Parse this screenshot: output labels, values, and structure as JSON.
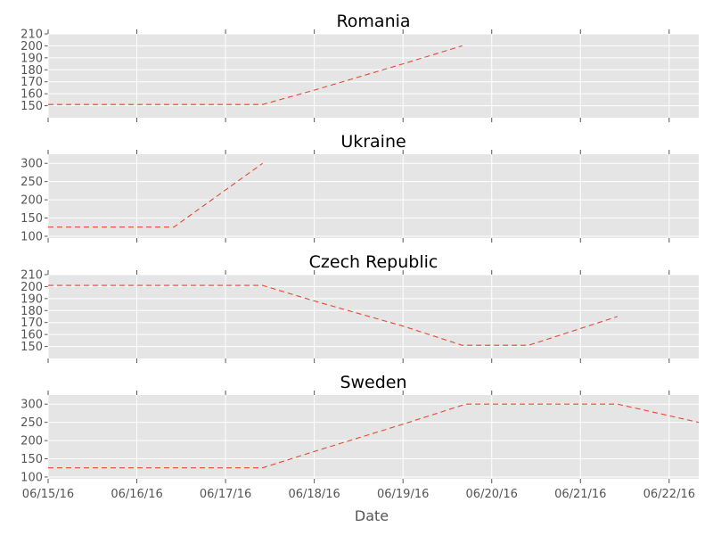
{
  "chart_data": {
    "type": "line",
    "xlabel": "Date",
    "x_ticks": [
      "06/15/16",
      "06/16/16",
      "06/17/16",
      "06/18/16",
      "06/19/16",
      "06/20/16",
      "06/21/16",
      "06/22/16"
    ],
    "xlim": [
      "2016-06-15T00:00",
      "2016-06-22T08:00"
    ],
    "line_style": "dashed",
    "line_color": "#E24A33",
    "background_color": "#E5E5E5",
    "grid": true,
    "panels": [
      {
        "title": "Romania",
        "ylim": [
          140,
          210
        ],
        "yticks": [
          150,
          160,
          170,
          180,
          190,
          200,
          210
        ],
        "x": [
          "2016-06-15T00:00",
          "2016-06-16T00:00",
          "2016-06-17T00:00",
          "2016-06-17T10:00",
          "2016-06-18T00:00",
          "2016-06-19T00:00",
          "2016-06-19T16:00"
        ],
        "y": [
          151,
          151,
          151,
          151,
          163,
          185,
          200
        ]
      },
      {
        "title": "Ukraine",
        "ylim": [
          95,
          325
        ],
        "yticks": [
          100,
          150,
          200,
          250,
          300
        ],
        "x": [
          "2016-06-15T00:00",
          "2016-06-16T00:00",
          "2016-06-16T10:00",
          "2016-06-17T10:00"
        ],
        "y": [
          125,
          125,
          125,
          300
        ]
      },
      {
        "title": "Czech Republic",
        "ylim": [
          140,
          210
        ],
        "yticks": [
          150,
          160,
          170,
          180,
          190,
          200,
          210
        ],
        "x": [
          "2016-06-15T00:00",
          "2016-06-16T00:00",
          "2016-06-17T00:00",
          "2016-06-17T10:00",
          "2016-06-18T00:00",
          "2016-06-19T00:00",
          "2016-06-19T16:00",
          "2016-06-20T10:00",
          "2016-06-21T10:00"
        ],
        "y": [
          201,
          201,
          201,
          201,
          188,
          167,
          151,
          151,
          175
        ]
      },
      {
        "title": "Sweden",
        "ylim": [
          95,
          325
        ],
        "yticks": [
          100,
          150,
          200,
          250,
          300
        ],
        "x": [
          "2016-06-15T00:00",
          "2016-06-16T00:00",
          "2016-06-17T00:00",
          "2016-06-17T10:00",
          "2016-06-18T00:00",
          "2016-06-19T00:00",
          "2016-06-19T17:00",
          "2016-06-20T00:00",
          "2016-06-21T00:00",
          "2016-06-21T10:00",
          "2016-06-22T08:00"
        ],
        "y": [
          125,
          125,
          125,
          125,
          170,
          245,
          300,
          300,
          300,
          300,
          250
        ]
      }
    ]
  }
}
